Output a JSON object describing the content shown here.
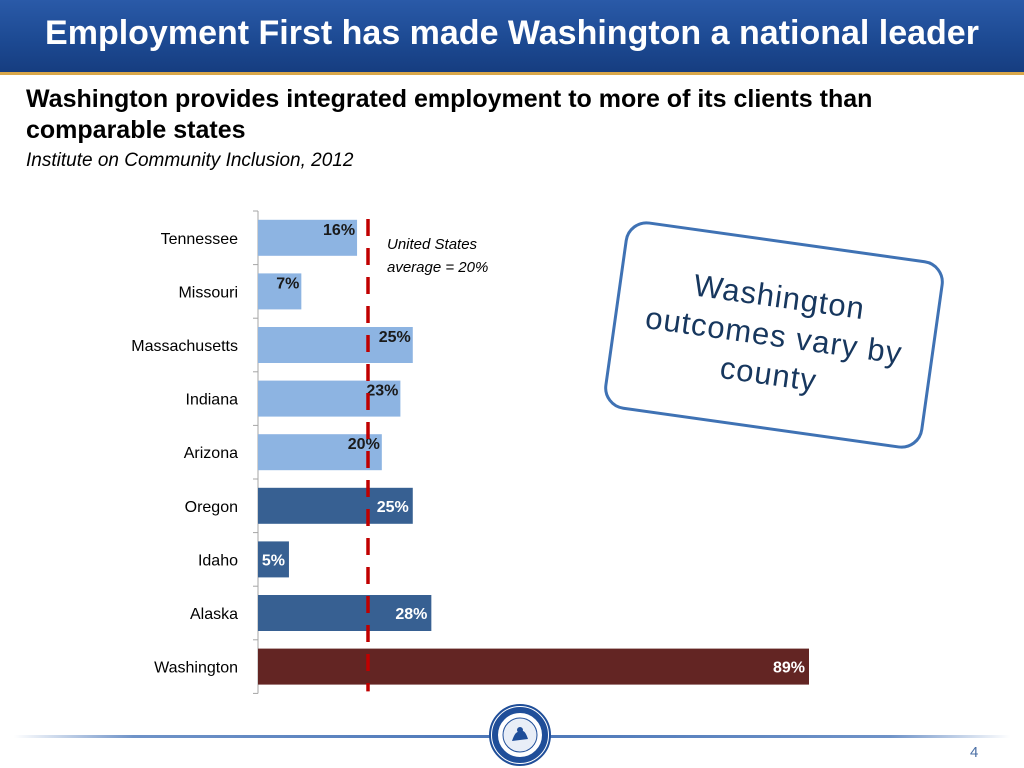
{
  "header": {
    "title": "Employment First has made Washington a national leader"
  },
  "subtitle": "Washington provides integrated employment to more of its clients than comparable states",
  "source": "Institute on Community Inclusion, 2012",
  "avg_note": {
    "line1": "United States",
    "line2": "average = 20%"
  },
  "callout": "Washington outcomes vary by county",
  "page_number": "4",
  "seal_icon": "auditor-of-state-washington-seal",
  "colors": {
    "comparison": "#8db4e2",
    "peer": "#376092",
    "washington": "#632523",
    "average_line": "#c00000",
    "title_bg": "#1f4e99"
  },
  "chart_data": {
    "type": "bar",
    "orientation": "horizontal",
    "categories": [
      "Tennessee",
      "Missouri",
      "Massachusetts",
      "Indiana",
      "Arizona",
      "Oregon",
      "Idaho",
      "Alaska",
      "Washington"
    ],
    "values": [
      16,
      7,
      25,
      23,
      20,
      25,
      5,
      28,
      89
    ],
    "data_labels": [
      "16%",
      "7%",
      "25%",
      "23%",
      "20%",
      "25%",
      "5%",
      "28%",
      "89%"
    ],
    "groups": [
      "comparison",
      "comparison",
      "comparison",
      "comparison",
      "comparison",
      "peer",
      "peer",
      "peer",
      "washington"
    ],
    "reference_line": {
      "value": 20,
      "label": "United States average = 20%"
    },
    "xlim": [
      0,
      90
    ],
    "title": "",
    "xlabel": "",
    "ylabel": ""
  }
}
